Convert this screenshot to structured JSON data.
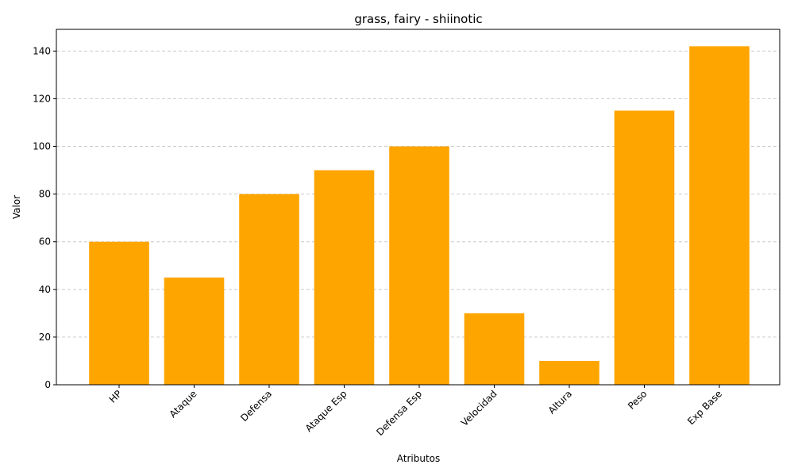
{
  "chart_data": {
    "type": "bar",
    "title": "grass, fairy - shiinotic",
    "xlabel": "Atributos",
    "ylabel": "Valor",
    "categories": [
      "HP",
      "Ataque",
      "Defensa",
      "Ataque Esp",
      "Defensa Esp",
      "Velocidad",
      "Altura",
      "Peso",
      "Exp Base"
    ],
    "values": [
      60,
      45,
      80,
      90,
      100,
      30,
      10,
      115,
      142
    ],
    "ylim": [
      0,
      149.1
    ],
    "yticks": [
      0,
      20,
      40,
      60,
      80,
      100,
      120,
      140
    ],
    "grid": "y-dashed",
    "bar_color": "#ffa500",
    "xtick_rotation": 45
  }
}
